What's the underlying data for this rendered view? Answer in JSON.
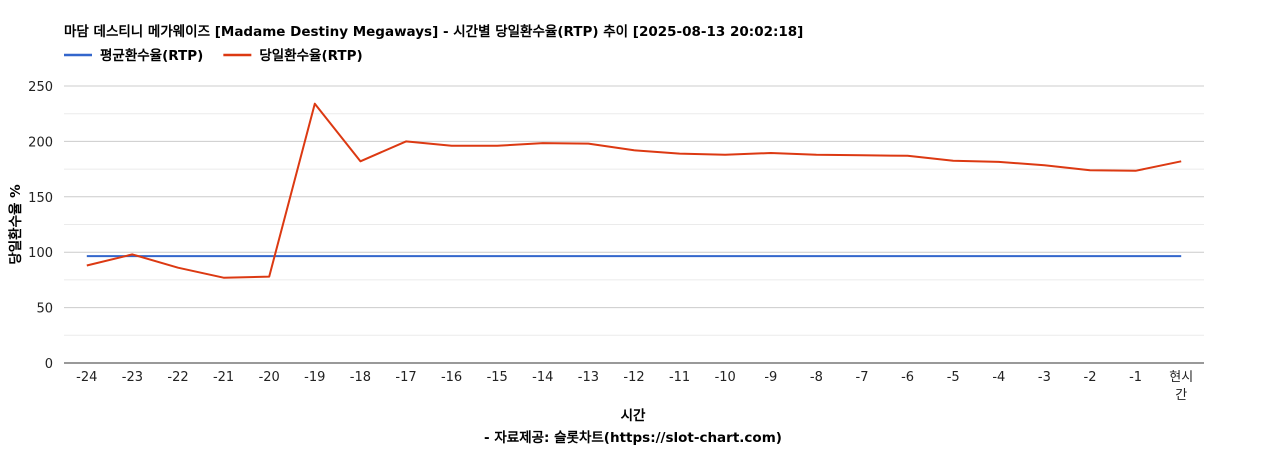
{
  "chart_data": {
    "type": "line",
    "title": "마담 데스티니 메가웨이즈 [Madame Destiny Megaways] - 시간별 당일환수율(RTP) 추이 [2025-08-13 20:02:18]",
    "xlabel": "시간",
    "ylabel": "당일환수율 %",
    "source": "- 자료제공: 슬롯차트(https://slot-chart.com)",
    "categories": [
      "-24",
      "-23",
      "-22",
      "-21",
      "-20",
      "-19",
      "-18",
      "-17",
      "-16",
      "-15",
      "-14",
      "-13",
      "-12",
      "-11",
      "-10",
      "-9",
      "-8",
      "-7",
      "-6",
      "-5",
      "-4",
      "-3",
      "-2",
      "-1",
      "현시간"
    ],
    "y_ticks": [
      "0",
      "50",
      "100",
      "150",
      "200",
      "250"
    ],
    "ylim": [
      0,
      250
    ],
    "grid": true,
    "legend_position": "top-left",
    "series": [
      {
        "name": "평균환수율(RTP)",
        "color": "#3366cc",
        "values": [
          96.5,
          96.5,
          96.5,
          96.5,
          96.5,
          96.5,
          96.5,
          96.5,
          96.5,
          96.5,
          96.5,
          96.5,
          96.5,
          96.5,
          96.5,
          96.5,
          96.5,
          96.5,
          96.5,
          96.5,
          96.5,
          96.5,
          96.5,
          96.5,
          96.5
        ]
      },
      {
        "name": "당일환수율(RTP)",
        "color": "#dc3912",
        "values": [
          88,
          98,
          86,
          77,
          78,
          234,
          182,
          200,
          196,
          196,
          198.5,
          198,
          192,
          189,
          188,
          189.5,
          188,
          187.5,
          187,
          182.5,
          181.5,
          178.5,
          174,
          173.5,
          182
        ]
      }
    ]
  }
}
